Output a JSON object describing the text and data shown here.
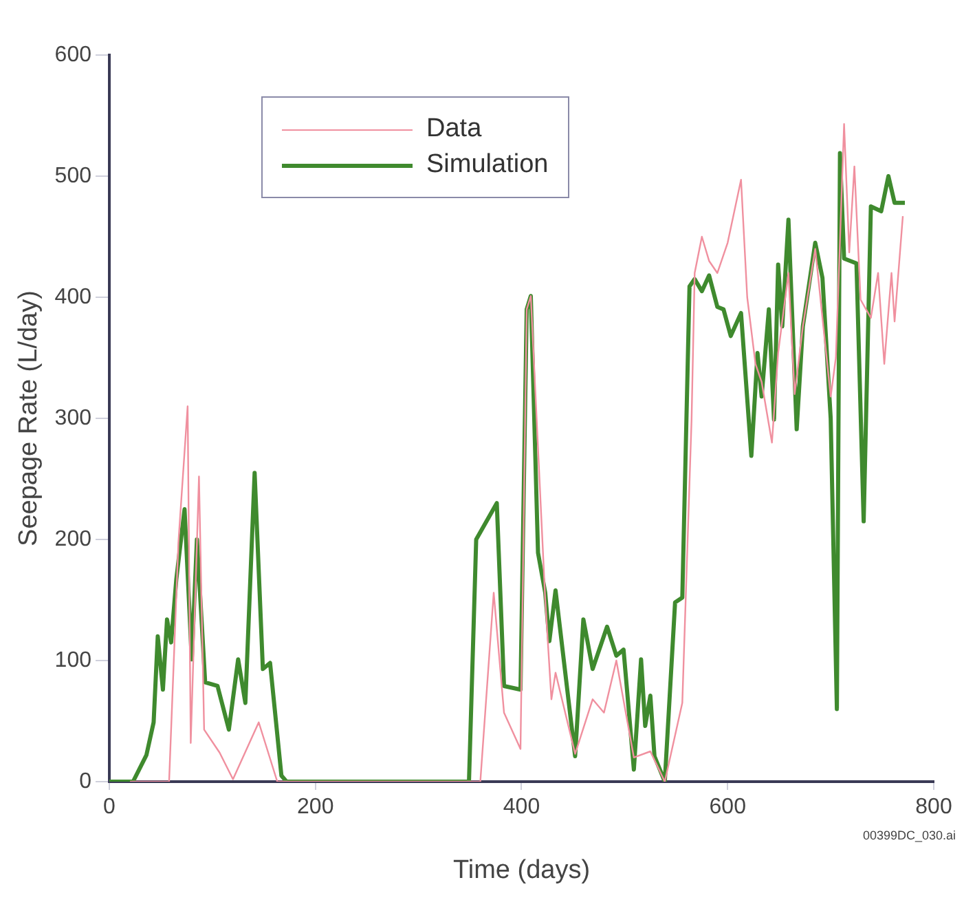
{
  "chart_data": {
    "type": "line",
    "xlabel": "Time (days)",
    "ylabel": "Seepage Rate (L/day)",
    "xlim": [
      0,
      800
    ],
    "xticks": [
      0,
      200,
      400,
      600,
      800
    ],
    "ylim": [
      0,
      600
    ],
    "yticks": [
      0,
      100,
      200,
      300,
      400,
      500,
      600
    ],
    "legend": "top left",
    "marker": "none",
    "line_style": "solid",
    "annotations": [
      "00399DC_030.ai"
    ],
    "series": [
      {
        "name": "Data",
        "color": "#f0909f",
        "x": [
          20,
          58,
          67,
          76,
          79,
          87,
          92,
          107,
          120,
          145,
          163,
          355,
          360,
          373,
          383,
          399,
          405,
          409,
          423,
          429,
          433,
          452,
          469,
          480,
          492,
          509,
          525,
          539,
          556,
          565,
          568,
          575,
          582,
          590,
          600,
          613,
          619,
          627,
          633,
          643,
          649,
          659,
          665,
          673,
          685,
          700,
          705,
          713,
          718,
          723,
          729,
          739,
          746,
          752,
          759,
          762,
          770
        ],
        "values": [
          0,
          0,
          197,
          310,
          32,
          252,
          43,
          24,
          2,
          49,
          0,
          0,
          0,
          156,
          57,
          27,
          390,
          401,
          150,
          68,
          90,
          23,
          68,
          57,
          100,
          20,
          25,
          0,
          65,
          299,
          420,
          450,
          430,
          420,
          445,
          497,
          400,
          345,
          330,
          280,
          354,
          420,
          320,
          376,
          440,
          318,
          350,
          543,
          437,
          508,
          398,
          383,
          420,
          345,
          420,
          380,
          467
        ]
      },
      {
        "name": "Simulation",
        "color": "#3f8a2e",
        "x": [
          0,
          23,
          36,
          43,
          47,
          52,
          56,
          60,
          65,
          73,
          80,
          85,
          93,
          105,
          116,
          125,
          132,
          141,
          149,
          156,
          167,
          172,
          349,
          356,
          376,
          383,
          399,
          405,
          409,
          416,
          423,
          427,
          433,
          452,
          460,
          469,
          483,
          492,
          499,
          509,
          516,
          520,
          525,
          529,
          539,
          549,
          556,
          563,
          568,
          575,
          582,
          590,
          596,
          603,
          613,
          623,
          629,
          633,
          640,
          645,
          649,
          653,
          659,
          667,
          673,
          685,
          692,
          700,
          706,
          709,
          713,
          725,
          732,
          739,
          749,
          756,
          762,
          772
        ],
        "values": [
          0,
          0,
          22,
          49,
          120,
          76,
          134,
          115,
          167,
          225,
          101,
          200,
          82,
          79,
          43,
          101,
          65,
          255,
          93,
          98,
          5,
          0,
          0,
          200,
          230,
          79,
          76,
          390,
          401,
          189,
          156,
          116,
          158,
          21,
          134,
          93,
          128,
          104,
          109,
          10,
          101,
          46,
          71,
          21,
          0,
          148,
          152,
          409,
          415,
          405,
          418,
          392,
          390,
          368,
          387,
          269,
          354,
          318,
          390,
          299,
          427,
          376,
          464,
          291,
          376,
          445,
          416,
          300,
          60,
          519,
          432,
          428,
          215,
          475,
          471,
          500,
          478,
          478
        ]
      }
    ]
  }
}
